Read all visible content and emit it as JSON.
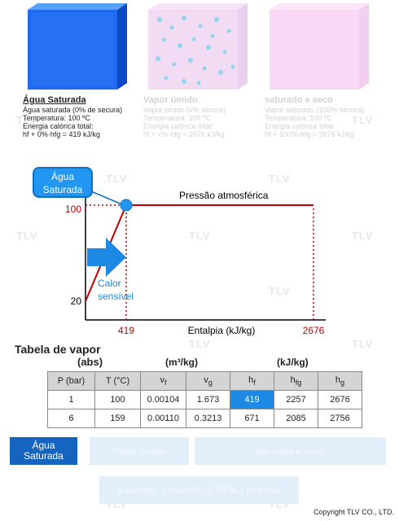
{
  "watermark": "TLV",
  "states": [
    {
      "title": "Água Saturada",
      "lines": [
        "Água saturada (0% de secura)",
        "Temperatura: 100 ºC",
        "Energia calórica total:",
        "hf + 0%·hfg = 419 kJ/kg"
      ]
    },
    {
      "title": "Vapor úmido",
      "lines": [
        "Vapor úmido (x% secura)",
        "Temperatura: 100 ºC",
        "Energia calórica total:",
        "hf + x%·hfg < 2676 kJ/kg"
      ]
    },
    {
      "title": "saturado e seco",
      "lines": [
        "Vapor saturado (100% secura)",
        "Temperatura: 100 ºC",
        "Energia calórica total:",
        "hf + 100%·hfg = 2676 kJ/kg"
      ]
    }
  ],
  "diagram": {
    "bubble": [
      "Água",
      "Saturada"
    ],
    "pressure_label": "Pressão atmosférica",
    "sensible_heat": [
      "Calor",
      "sensível"
    ],
    "xlabel": "Entalpia (kJ/kg)",
    "x_ticks": [
      "419",
      "2676"
    ],
    "y_ticks": [
      "100",
      "20"
    ],
    "colors": {
      "line": "#c00000",
      "point": "#2196f3",
      "arrow": "#1e88e5"
    }
  },
  "chart_data": {
    "type": "line",
    "xlabel": "Entalpia (kJ/kg)",
    "ylabel": "",
    "series": [
      {
        "name": "",
        "points": [
          [
            84,
            20
          ],
          [
            419,
            100
          ],
          [
            2676,
            100
          ]
        ]
      }
    ],
    "x_ticks": [
      419,
      2676
    ],
    "y_ticks": [
      20,
      100
    ],
    "marker": {
      "x": 419,
      "y": 100,
      "label": "Água Saturada"
    },
    "annotations": [
      "Pressão atmosférica",
      "Calor sensível"
    ]
  },
  "table": {
    "title": "Tabela de vapor",
    "group_abs": "(abs)",
    "group_vol": "(m³/kg)",
    "group_en": "(kJ/kg)",
    "headers": [
      "P (bar)",
      "T (°C)",
      "v",
      "v",
      "h",
      "h",
      "h"
    ],
    "subs": [
      "",
      "",
      "f",
      "g",
      "f",
      "fg",
      "g"
    ],
    "rows": [
      [
        "1",
        "100",
        "0.00104",
        "1.673",
        "419",
        "2257",
        "2676"
      ],
      [
        "6",
        "159",
        "0.00110",
        "0.3213",
        "671",
        "2085",
        "2756"
      ]
    ]
  },
  "buttons": {
    "agua": [
      "Água",
      "Saturada"
    ],
    "umido": "Vapor úmido",
    "seco": "saturado e seco",
    "example": "Example: Steam@0.5 MPaG",
    "example_small": "[72.5 psig]"
  },
  "copyright": "Copyright TLV CO., LTD."
}
